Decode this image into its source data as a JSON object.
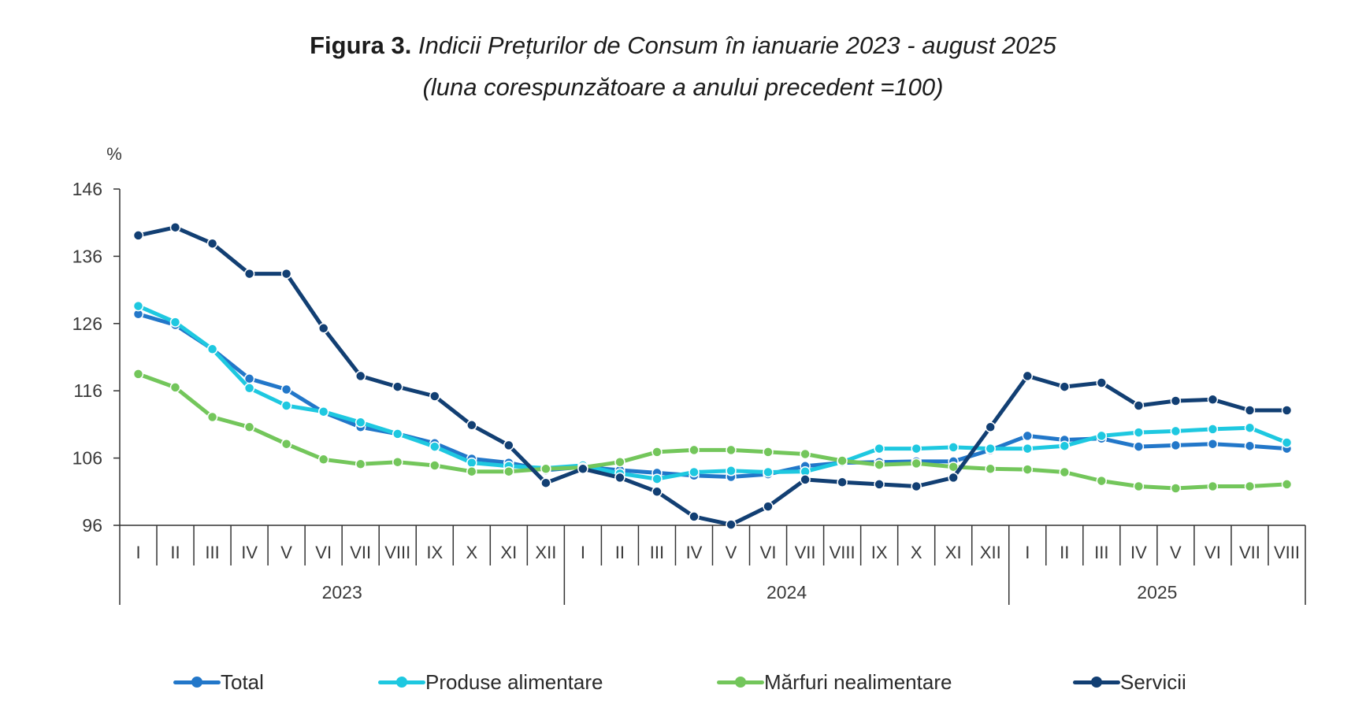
{
  "title": {
    "prefix": "Figura 3.",
    "main": "Indicii Prețurilor de Consum în ianuarie 2023 - august 2025",
    "subtitle": "(luna corespunzătoare a anului precedent =100)"
  },
  "chart_data": {
    "type": "line",
    "title": "Figura 3. Indicii Prețurilor de Consum în ianuarie 2023 - august 2025",
    "subtitle": "(luna corespunzătoare a anului precedent =100)",
    "ylabel": "%",
    "xlabel": "",
    "ylim": [
      96,
      146
    ],
    "yticks": [
      96,
      106,
      116,
      126,
      136,
      146
    ],
    "grid": false,
    "legend_position": "bottom",
    "categories": [
      "I",
      "II",
      "III",
      "IV",
      "V",
      "VI",
      "VII",
      "VIII",
      "IX",
      "X",
      "XI",
      "XII",
      "I",
      "II",
      "III",
      "IV",
      "V",
      "VI",
      "VII",
      "VIII",
      "IX",
      "X",
      "XI",
      "XII",
      "I",
      "II",
      "III",
      "IV",
      "V",
      "VI",
      "VII",
      "VIII"
    ],
    "year_groups": [
      {
        "label": "2023",
        "count": 12
      },
      {
        "label": "2024",
        "count": 12
      },
      {
        "label": "2025",
        "count": 8
      }
    ],
    "series": [
      {
        "name": "Total",
        "color": "#2277c9",
        "values": [
          127.4,
          125.8,
          122.2,
          117.8,
          116.2,
          112.8,
          110.6,
          109.6,
          108.2,
          105.9,
          105.3,
          104.2,
          104.7,
          104.2,
          103.8,
          103.4,
          103.2,
          103.6,
          104.8,
          105.3,
          105.4,
          105.5,
          105.5,
          107.2,
          109.3,
          108.7,
          108.9,
          107.7,
          107.9,
          108.1,
          107.8,
          107.4
        ]
      },
      {
        "name": "Produse alimentare",
        "color": "#1ec8e0",
        "values": [
          128.6,
          126.2,
          122.2,
          116.4,
          113.8,
          112.9,
          111.3,
          109.6,
          107.7,
          105.3,
          104.8,
          104.5,
          104.9,
          103.7,
          102.9,
          103.9,
          104.1,
          103.9,
          104.0,
          105.4,
          107.4,
          107.4,
          107.6,
          107.4,
          107.4,
          107.8,
          109.3,
          109.8,
          110.0,
          110.3,
          110.5,
          108.3
        ]
      },
      {
        "name": "Mărfuri nealimentare",
        "color": "#73c65b",
        "values": [
          118.5,
          116.5,
          112.1,
          110.6,
          108.1,
          105.8,
          105.1,
          105.4,
          104.9,
          104.0,
          104.0,
          104.4,
          104.6,
          105.4,
          106.9,
          107.2,
          107.2,
          106.9,
          106.6,
          105.6,
          105.0,
          105.2,
          104.7,
          104.4,
          104.3,
          103.9,
          102.6,
          101.8,
          101.5,
          101.8,
          101.8,
          102.1
        ]
      },
      {
        "name": "Servicii",
        "color": "#123f73",
        "values": [
          139.1,
          140.3,
          137.9,
          133.4,
          133.4,
          125.3,
          118.2,
          116.6,
          115.2,
          110.9,
          107.9,
          102.3,
          104.4,
          103.1,
          101.0,
          97.3,
          96.1,
          98.8,
          102.8,
          102.4,
          102.1,
          101.8,
          103.1,
          110.6,
          118.2,
          116.6,
          117.2,
          113.8,
          114.5,
          114.7,
          113.1,
          113.1
        ]
      }
    ]
  },
  "legend": [
    {
      "label": "Total",
      "color": "#2277c9"
    },
    {
      "label": "Produse alimentare",
      "color": "#1ec8e0"
    },
    {
      "label": "Mărfuri nealimentare",
      "color": "#73c65b"
    },
    {
      "label": "Servicii",
      "color": "#123f73"
    }
  ]
}
